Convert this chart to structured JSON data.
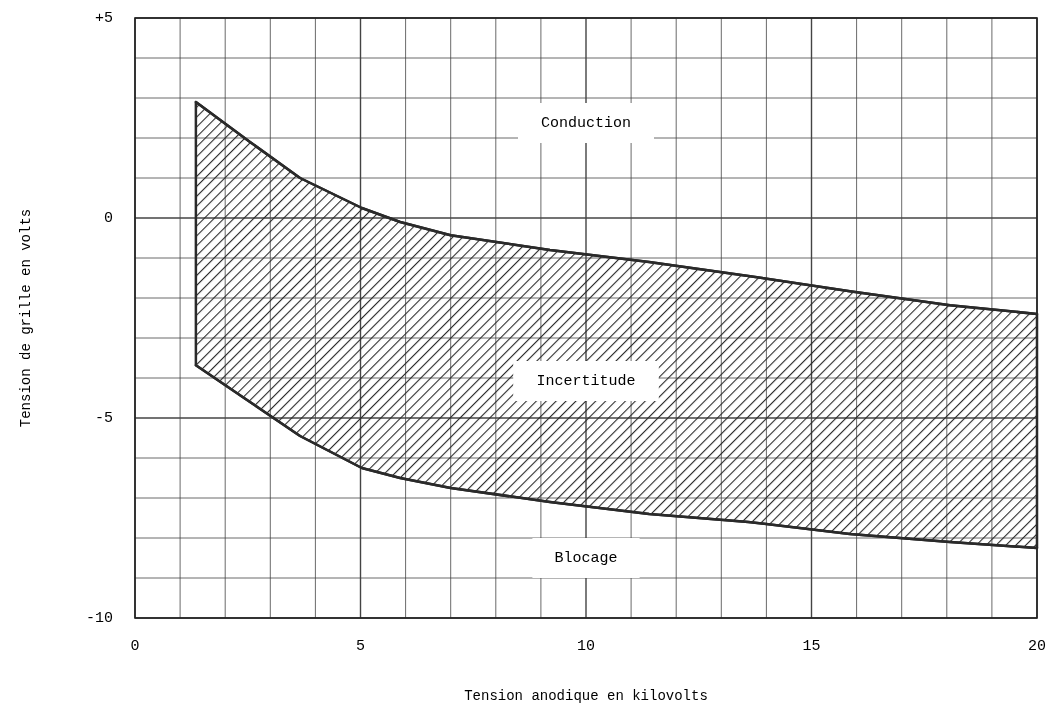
{
  "chart_data": {
    "type": "line",
    "xlabel": "Tension anodique en kilovolts",
    "ylabel": "Tension de grille en volts",
    "x": [
      1.35,
      2.55,
      3.66,
      5.03,
      5.88,
      7,
      9.2,
      11.4,
      13.6,
      15.85,
      18.07,
      20
    ],
    "series": [
      {
        "color": "#2a2a2a",
        "values": [
          2.9,
          1.9,
          1.0,
          0.25,
          -0.1,
          -0.43,
          -0.8,
          -1.1,
          -1.45,
          -1.83,
          -2.18,
          -2.4
        ],
        "lower": [
          -3.68,
          -4.6,
          -5.45,
          -6.25,
          -6.5,
          -6.75,
          -7.1,
          -7.4,
          -7.6,
          -7.9,
          -8.1,
          -8.25
        ],
        "upper": [
          2.9,
          1.9,
          1.0,
          0.25,
          -0.1,
          -0.43,
          -0.8,
          -1.1,
          -1.45,
          -1.83,
          -2.18,
          -2.4
        ]
      },
      {
        "color": "#2a2a2a",
        "values": [
          -3.68,
          -4.6,
          -5.45,
          -6.25,
          -6.5,
          -6.75,
          -7.1,
          -7.4,
          -7.6,
          -7.9,
          -8.1,
          -8.25
        ]
      }
    ],
    "xlim": [
      0,
      20
    ],
    "xticks": [
      0,
      5,
      10,
      15,
      20
    ],
    "ylim": [
      -10,
      5
    ],
    "yticks": [
      {
        "value": 5,
        "label": "+5"
      },
      0,
      -5,
      -10
    ],
    "grid": true,
    "annotations": [
      "Conduction",
      "Incertitude",
      "Blocage"
    ]
  }
}
